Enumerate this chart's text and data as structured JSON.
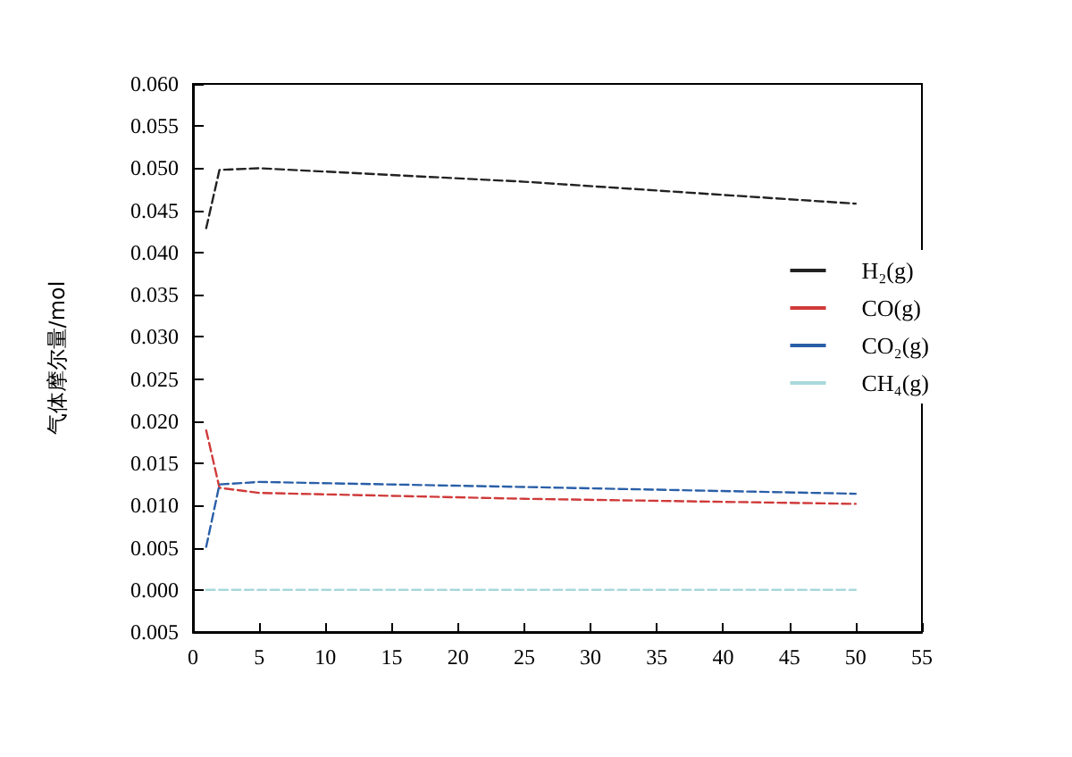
{
  "chart_data": {
    "type": "line",
    "ylabel": "气体摩尔量/mol",
    "x": [
      1,
      2,
      5,
      25,
      50
    ],
    "series": [
      {
        "name": "H₂(g)",
        "color": "#222222",
        "values": [
          0.0429,
          0.0498,
          0.05,
          0.0484,
          0.0458
        ]
      },
      {
        "name": "CO(g)",
        "color": "#d03a3a",
        "values": [
          0.0189,
          0.0121,
          0.0115,
          0.0108,
          0.0102
        ]
      },
      {
        "name": "CO₂(g)",
        "color": "#2a5fa8",
        "values": [
          0.0051,
          0.0125,
          0.0128,
          0.0122,
          0.0114
        ]
      },
      {
        "name": "CH₄(g)",
        "color": "#a8d8dc",
        "values": [
          0,
          0,
          0,
          0,
          0
        ]
      }
    ],
    "xlim": [
      0,
      55
    ],
    "xticks": [
      0,
      5,
      10,
      15,
      20,
      25,
      30,
      35,
      40,
      45,
      50,
      55
    ],
    "ylim": [
      -0.005,
      0.06
    ],
    "yticks": [
      {
        "value": -0.005,
        "label": "0.005"
      },
      {
        "value": 0,
        "label": "0.000"
      },
      {
        "value": 0.005,
        "label": "0.005"
      },
      {
        "value": 0.01,
        "label": "0.010"
      },
      {
        "value": 0.015,
        "label": "0.015"
      },
      {
        "value": 0.02,
        "label": "0.020"
      },
      {
        "value": 0.025,
        "label": "0.025"
      },
      {
        "value": 0.03,
        "label": "0.030"
      },
      {
        "value": 0.035,
        "label": "0.035"
      },
      {
        "value": 0.04,
        "label": "0.040"
      },
      {
        "value": 0.045,
        "label": "0.045"
      },
      {
        "value": 0.05,
        "label": "0.050"
      },
      {
        "value": 0.055,
        "label": "0.055"
      },
      {
        "value": 0.06,
        "label": "0.060"
      }
    ],
    "grid": false,
    "legend": "right",
    "marker": "none",
    "line_style": "dashed"
  }
}
